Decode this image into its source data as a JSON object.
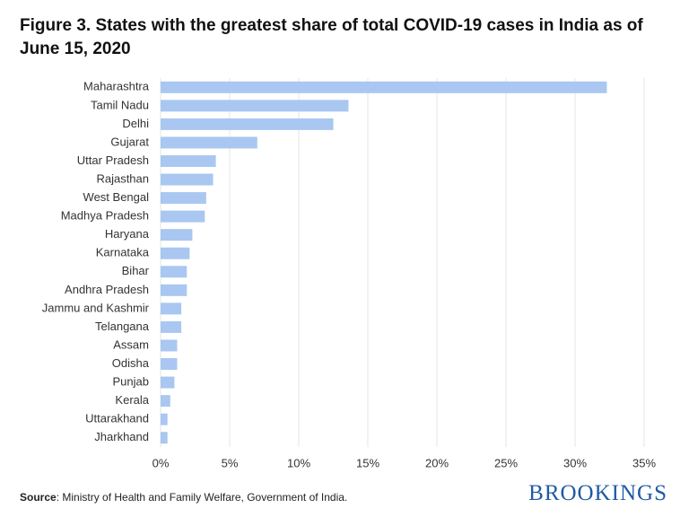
{
  "chart_data": {
    "type": "barh",
    "title": "Figure 3. States with the greatest share of total COVID-19 cases in India as of June 15, 2020",
    "categories": [
      "Maharashtra",
      "Tamil Nadu",
      "Delhi",
      "Gujarat",
      "Uttar Pradesh",
      "Rajasthan",
      "West Bengal",
      "Madhya Pradesh",
      "Haryana",
      "Karnataka",
      "Bihar",
      "Andhra Pradesh",
      "Jammu and Kashmir",
      "Telangana",
      "Assam",
      "Odisha",
      "Punjab",
      "Kerala",
      "Uttarakhand",
      "Jharkhand"
    ],
    "values": [
      32.3,
      13.6,
      12.5,
      7.0,
      4.0,
      3.8,
      3.3,
      3.2,
      2.3,
      2.1,
      1.9,
      1.9,
      1.5,
      1.5,
      1.2,
      1.2,
      1.0,
      0.7,
      0.5,
      0.5
    ],
    "color": "#a9c7f0",
    "xlim": [
      0,
      35
    ],
    "xticks": [
      {
        "value": 0,
        "label": "0%"
      },
      {
        "value": 5,
        "label": "5%"
      },
      {
        "value": 10,
        "label": "10%"
      },
      {
        "value": 15,
        "label": "15%"
      },
      {
        "value": 20,
        "label": "20%"
      },
      {
        "value": 25,
        "label": "25%"
      },
      {
        "value": 30,
        "label": "30%"
      },
      {
        "value": 35,
        "label": "35%"
      }
    ],
    "grid": true,
    "source_label": "Source",
    "source_text": ": Ministry of Health and Family Welfare, Government of India.",
    "brand": "BROOKINGS"
  }
}
